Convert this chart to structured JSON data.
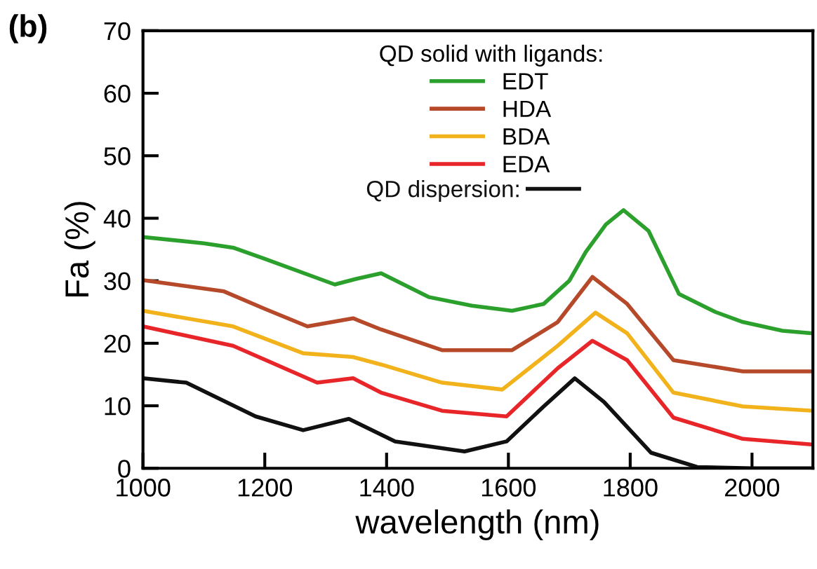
{
  "chart_data": {
    "type": "line",
    "xlabel": "wavelength (nm)",
    "ylabel": "Fa (%)",
    "legend_title": "QD solid with ligands:",
    "annotations": [
      "(b)"
    ],
    "xlim": [
      1000,
      2100
    ],
    "xticks": [
      1000,
      1200,
      1400,
      1600,
      1800,
      2000
    ],
    "ylim": [
      0,
      70
    ],
    "yticks": [
      0,
      10,
      20,
      30,
      40,
      50,
      60,
      70
    ],
    "grid": false,
    "legend": "top",
    "series": [
      {
        "name": "EDT",
        "color": "#2ca02c",
        "x": [
          1000,
          1100,
          1148,
          1200,
          1315,
          1350,
          1391,
          1469,
          1540,
          1606,
          1658,
          1700,
          1727,
          1760,
          1789,
          1830,
          1880,
          1940,
          1985,
          2050,
          2097
        ],
        "values": [
          37,
          36,
          35.3,
          33.5,
          29.4,
          30.3,
          31.2,
          27.4,
          26,
          25.2,
          26.3,
          30,
          34.6,
          39,
          41.3,
          38,
          27.9,
          25,
          23.4,
          22,
          21.6
        ]
      },
      {
        "name": "HDA",
        "color": "#b5492a",
        "x": [
          1000,
          1133,
          1200,
          1270,
          1345,
          1391,
          1491,
          1606,
          1681,
          1738,
          1795,
          1871,
          1985,
          2100
        ],
        "values": [
          30.1,
          28.3,
          25.5,
          22.7,
          24,
          22.2,
          18.9,
          18.9,
          23.4,
          30.6,
          26.3,
          17.3,
          15.5,
          15.5
        ]
      },
      {
        "name": "BDA",
        "color": "#f2b21b",
        "x": [
          1000,
          1148,
          1263,
          1345,
          1391,
          1491,
          1590,
          1681,
          1743,
          1795,
          1871,
          1985,
          2100
        ],
        "values": [
          25.2,
          22.7,
          18.4,
          17.8,
          16.6,
          13.7,
          12.6,
          19.6,
          24.9,
          21.6,
          12.1,
          9.9,
          9.2
        ]
      },
      {
        "name": "EDA",
        "color": "#e8262a",
        "x": [
          1000,
          1148,
          1286,
          1345,
          1391,
          1491,
          1597,
          1681,
          1738,
          1795,
          1871,
          1985,
          2100
        ],
        "values": [
          22.7,
          19.6,
          13.7,
          14.4,
          12.1,
          9.2,
          8.3,
          16,
          20.4,
          17.3,
          8.1,
          4.7,
          3.8
        ]
      },
      {
        "name": "QD dispersion:",
        "color": "#111111",
        "x": [
          1000,
          1071,
          1185,
          1263,
          1338,
          1414,
          1528,
          1597,
          1658,
          1709,
          1757,
          1834,
          1910,
          2000,
          2100
        ],
        "values": [
          14.4,
          13.7,
          8.3,
          6.1,
          7.9,
          4.3,
          2.7,
          4.3,
          9.9,
          14.4,
          10.6,
          2.5,
          0.2,
          0,
          0
        ]
      }
    ]
  }
}
